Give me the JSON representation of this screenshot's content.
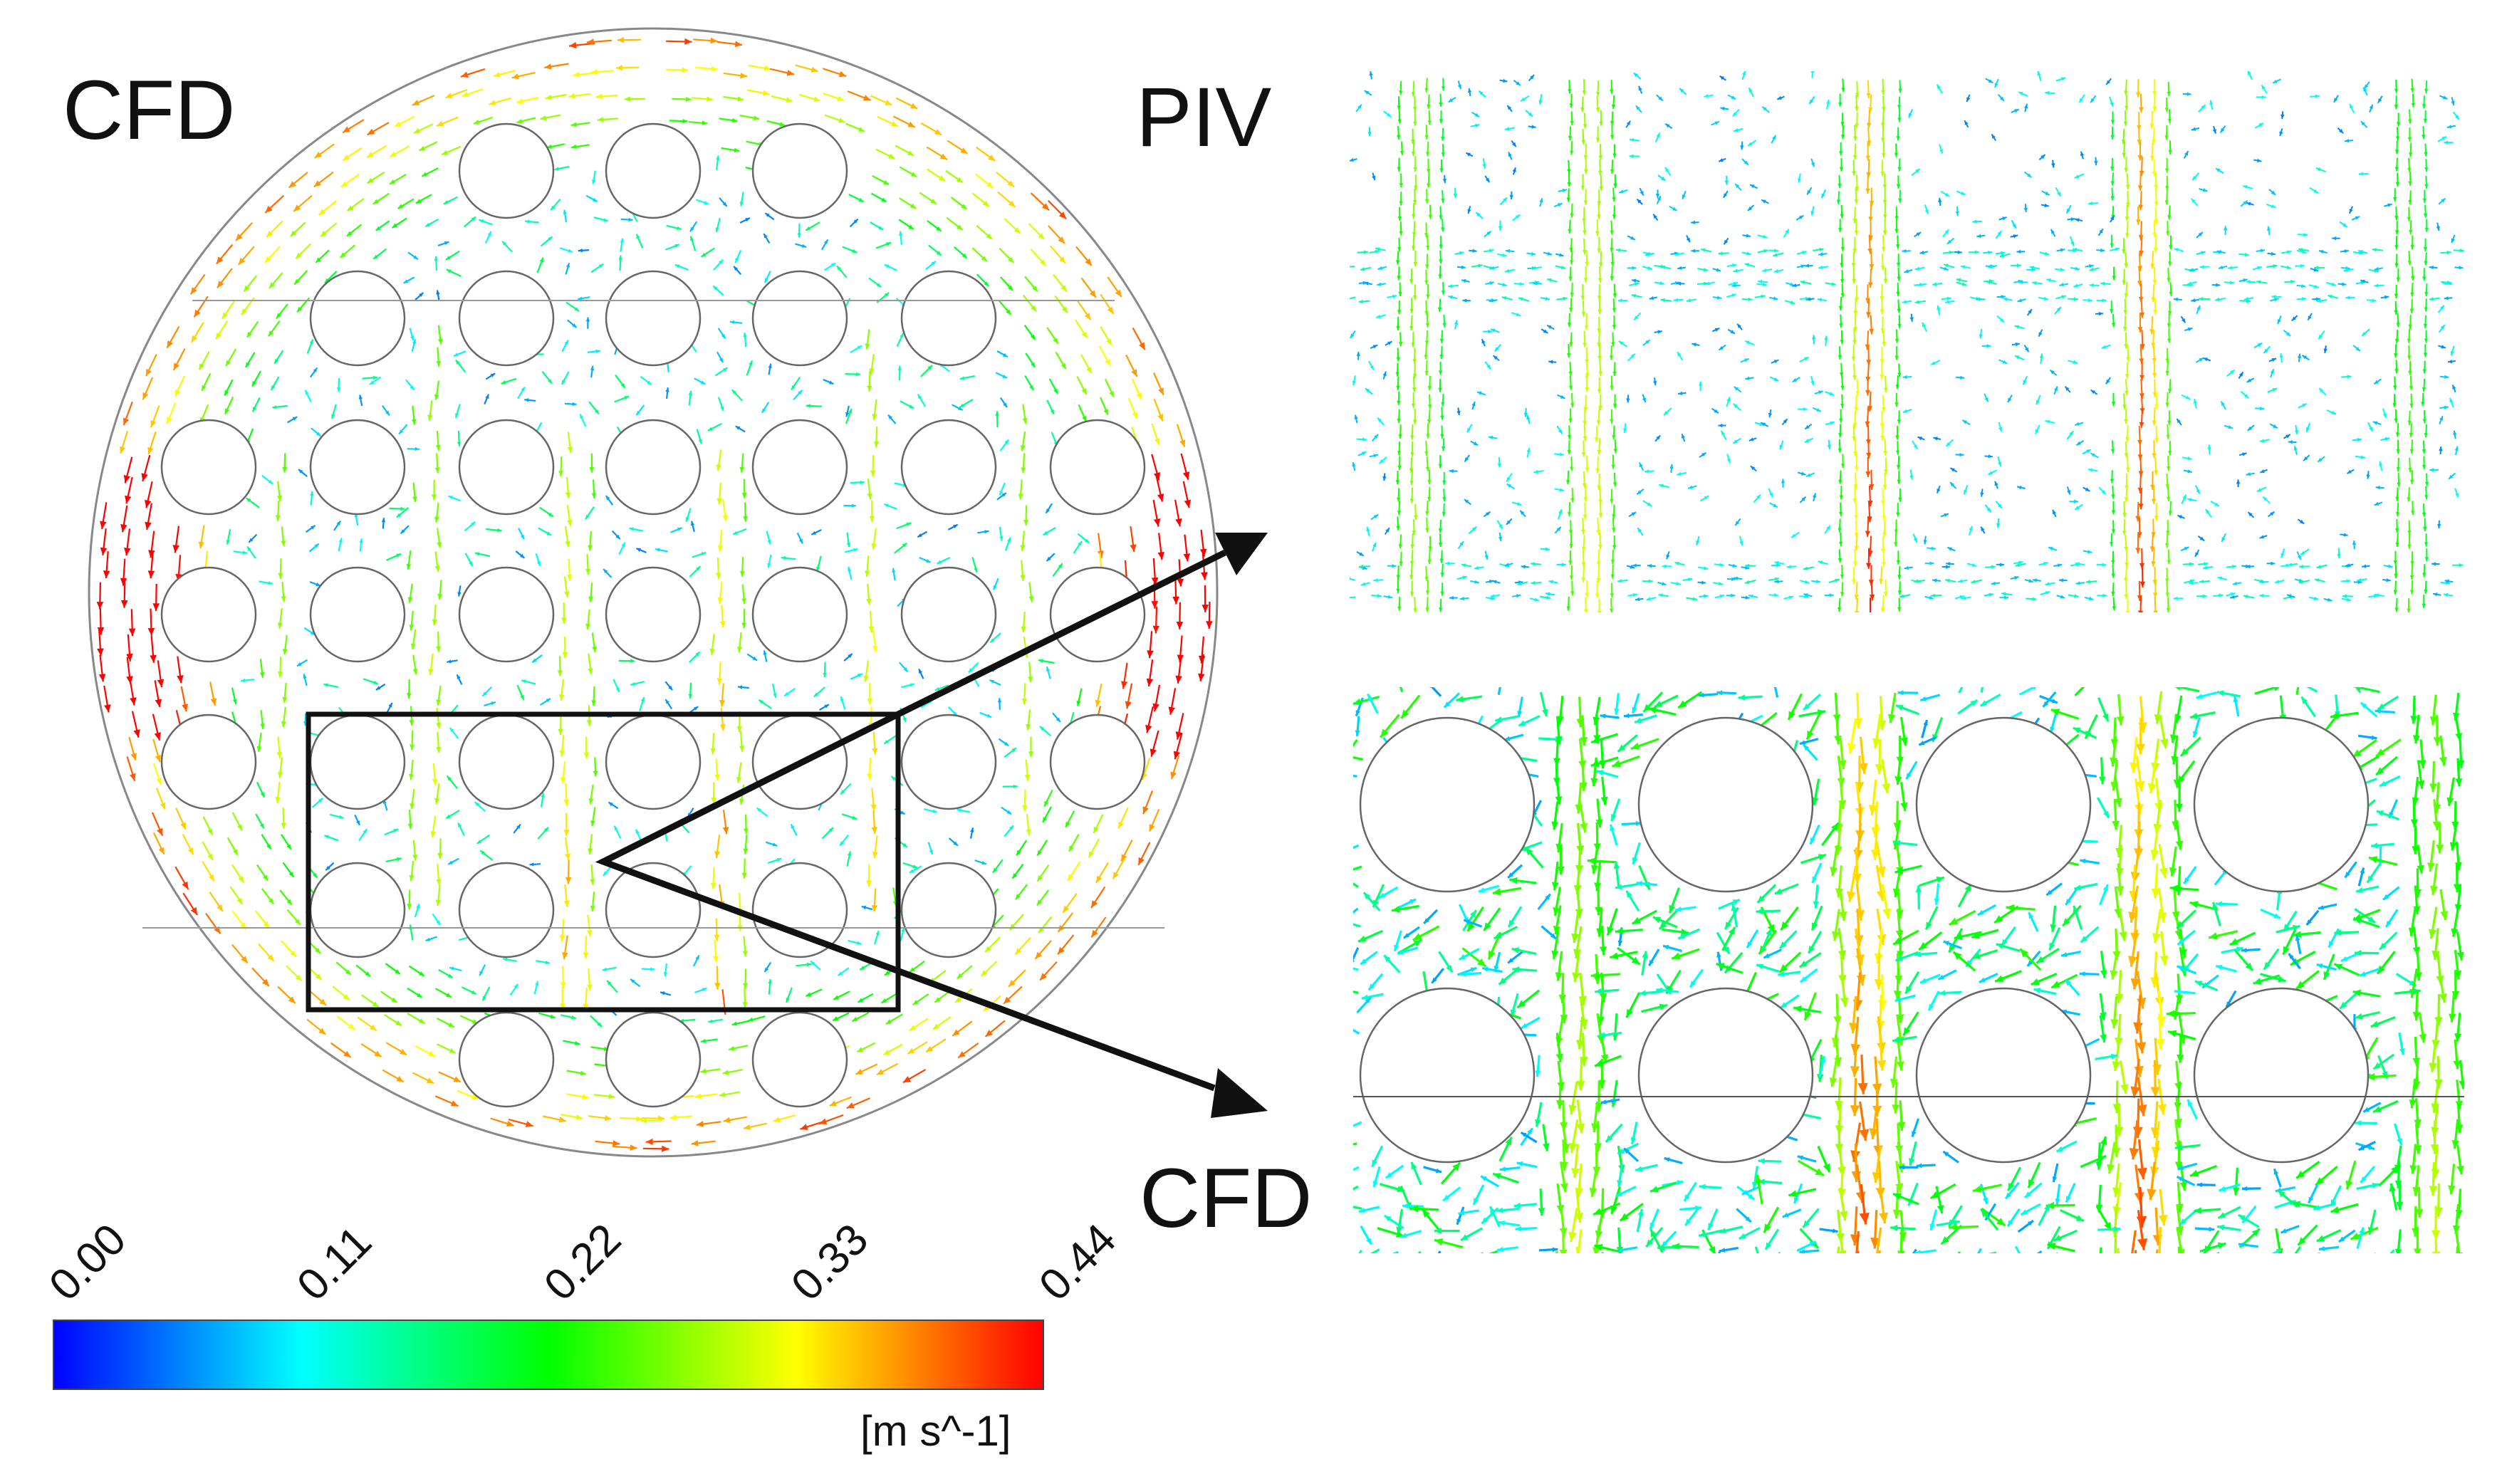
{
  "labels": {
    "cfd_main": "CFD",
    "piv": "PIV",
    "cfd_zoom": "CFD"
  },
  "colorbar": {
    "ticks": [
      "0.00",
      "0.11",
      "0.22",
      "0.33",
      "0.44"
    ],
    "min": 0.0,
    "max": 0.44,
    "unit": "[m s^-1]",
    "colors": [
      "#0000ff",
      "#00ffff",
      "#00ff00",
      "#ffff00",
      "#ff0000"
    ]
  },
  "colors": {
    "outline": "#888888",
    "frame": "#111111",
    "background": "#ffffff"
  }
}
